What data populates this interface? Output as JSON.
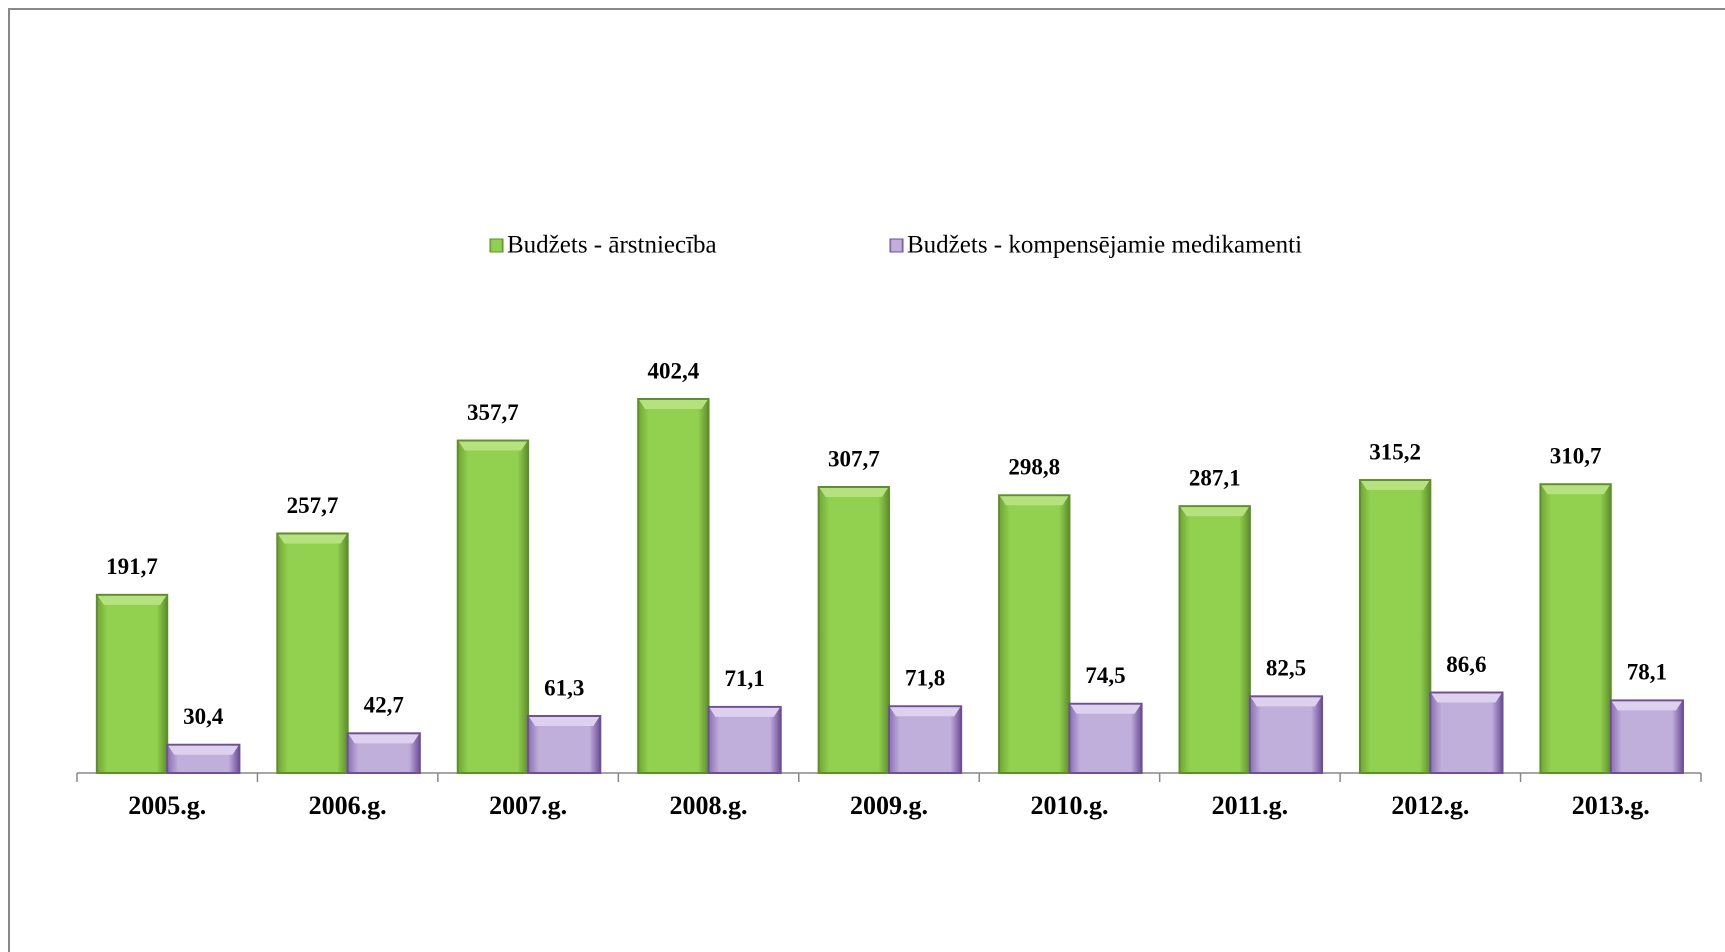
{
  "chart_data": {
    "type": "bar",
    "categories": [
      "2005.g.",
      "2006.g.",
      "2007.g.",
      "2008.g.",
      "2009.g.",
      "2010.g.",
      "2011.g.",
      "2012.g.",
      "2013.g."
    ],
    "series": [
      {
        "name": "Budžets - ārstniecība",
        "color": "#92d050",
        "values": [
          191.7,
          257.7,
          357.7,
          402.4,
          307.7,
          298.8,
          287.1,
          315.2,
          310.7
        ],
        "value_labels": [
          "191,7",
          "257,7",
          "357,7",
          "402,4",
          "307,7",
          "298,8",
          "287,1",
          "315,2",
          "310,7"
        ]
      },
      {
        "name": "Budžets - kompensējamie medikamenti",
        "color": "#b7a3d3",
        "values": [
          30.4,
          42.7,
          61.3,
          71.1,
          71.8,
          74.5,
          82.5,
          86.6,
          78.1
        ],
        "value_labels": [
          "30,4",
          "42,7",
          "61,3",
          "71,1",
          "71,8",
          "74,5",
          "82,5",
          "86,6",
          "78,1"
        ]
      }
    ],
    "legend": "top"
  }
}
